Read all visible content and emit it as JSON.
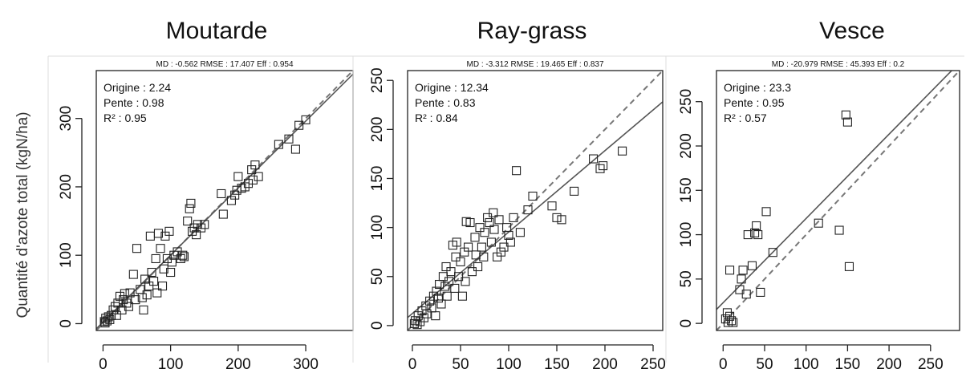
{
  "figure": {
    "ylabel": "Quantité d'azote total (kgN/ha)"
  },
  "chart_data": [
    {
      "type": "scatter",
      "title": "Moutarde",
      "stats_label": "MD : -0.562   RMSE : 17.407   Eff : 0.954",
      "annotations": [
        "Origine : 2.24",
        "Pente : 0.98",
        "R² : 0.95"
      ],
      "xlim": [
        -10,
        370
      ],
      "ylim": [
        -10,
        370
      ],
      "xticks": [
        0,
        100,
        200,
        300
      ],
      "yticks": [
        0,
        100,
        200,
        300
      ],
      "fit": {
        "intercept": 2.24,
        "slope": 0.98
      },
      "reference_line": {
        "intercept": 0,
        "slope": 1
      },
      "grid": false,
      "points": [
        [
          2,
          3
        ],
        [
          4,
          8
        ],
        [
          6,
          4
        ],
        [
          8,
          10
        ],
        [
          10,
          6
        ],
        [
          12,
          12
        ],
        [
          3,
          1
        ],
        [
          15,
          20
        ],
        [
          18,
          25
        ],
        [
          20,
          12
        ],
        [
          22,
          30
        ],
        [
          25,
          40
        ],
        [
          28,
          20
        ],
        [
          30,
          35
        ],
        [
          32,
          44
        ],
        [
          35,
          30
        ],
        [
          38,
          25
        ],
        [
          40,
          45
        ],
        [
          45,
          72
        ],
        [
          48,
          35
        ],
        [
          50,
          110
        ],
        [
          55,
          50
        ],
        [
          58,
          38
        ],
        [
          60,
          20
        ],
        [
          62,
          65
        ],
        [
          65,
          42
        ],
        [
          68,
          55
        ],
        [
          70,
          128
        ],
        [
          72,
          75
        ],
        [
          75,
          62
        ],
        [
          78,
          95
        ],
        [
          80,
          45
        ],
        [
          82,
          132
        ],
        [
          85,
          110
        ],
        [
          88,
          55
        ],
        [
          90,
          80
        ],
        [
          92,
          128
        ],
        [
          95,
          95
        ],
        [
          98,
          135
        ],
        [
          100,
          75
        ],
        [
          102,
          90
        ],
        [
          105,
          100
        ],
        [
          110,
          105
        ],
        [
          115,
          95
        ],
        [
          118,
          100
        ],
        [
          120,
          98
        ],
        [
          125,
          150
        ],
        [
          128,
          168
        ],
        [
          130,
          176
        ],
        [
          132,
          135
        ],
        [
          135,
          140
        ],
        [
          138,
          130
        ],
        [
          140,
          145
        ],
        [
          145,
          140
        ],
        [
          150,
          145
        ],
        [
          175,
          190
        ],
        [
          178,
          160
        ],
        [
          190,
          180
        ],
        [
          195,
          188
        ],
        [
          198,
          195
        ],
        [
          200,
          215
        ],
        [
          205,
          198
        ],
        [
          210,
          200
        ],
        [
          215,
          205
        ],
        [
          220,
          225
        ],
        [
          222,
          210
        ],
        [
          225,
          232
        ],
        [
          230,
          215
        ],
        [
          260,
          262
        ],
        [
          275,
          270
        ],
        [
          285,
          255
        ],
        [
          290,
          290
        ],
        [
          300,
          298
        ]
      ]
    },
    {
      "type": "scatter",
      "title": "Ray-grass",
      "stats_label": "MD : -3.312   RMSE : 19.465   Eff : 0.837",
      "annotations": [
        "Origine : 12.34",
        "Pente : 0.83",
        "R² : 0.84"
      ],
      "xlim": [
        -5,
        260
      ],
      "ylim": [
        -5,
        260
      ],
      "xticks": [
        0,
        50,
        100,
        150,
        200,
        250
      ],
      "yticks": [
        0,
        50,
        100,
        150,
        200,
        250
      ],
      "fit": {
        "intercept": 12.34,
        "slope": 0.83
      },
      "reference_line": {
        "intercept": 0,
        "slope": 1
      },
      "grid": false,
      "points": [
        [
          2,
          2
        ],
        [
          3,
          5
        ],
        [
          5,
          1
        ],
        [
          6,
          10
        ],
        [
          8,
          4
        ],
        [
          10,
          15
        ],
        [
          12,
          8
        ],
        [
          14,
          20
        ],
        [
          15,
          12
        ],
        [
          18,
          25
        ],
        [
          20,
          18
        ],
        [
          22,
          30
        ],
        [
          24,
          10
        ],
        [
          25,
          35
        ],
        [
          27,
          28
        ],
        [
          28,
          42
        ],
        [
          30,
          22
        ],
        [
          32,
          50
        ],
        [
          34,
          40
        ],
        [
          35,
          60
        ],
        [
          36,
          30
        ],
        [
          38,
          45
        ],
        [
          40,
          55
        ],
        [
          42,
          82
        ],
        [
          44,
          38
        ],
        [
          45,
          70
        ],
        [
          46,
          85
        ],
        [
          48,
          50
        ],
        [
          50,
          65
        ],
        [
          52,
          30
        ],
        [
          54,
          75
        ],
        [
          55,
          45
        ],
        [
          56,
          106
        ],
        [
          58,
          80
        ],
        [
          60,
          105
        ],
        [
          62,
          55
        ],
        [
          65,
          90
        ],
        [
          66,
          72
        ],
        [
          68,
          60
        ],
        [
          70,
          100
        ],
        [
          72,
          80
        ],
        [
          74,
          70
        ],
        [
          75,
          95
        ],
        [
          78,
          110
        ],
        [
          80,
          105
        ],
        [
          82,
          85
        ],
        [
          84,
          115
        ],
        [
          85,
          98
        ],
        [
          88,
          70
        ],
        [
          90,
          108
        ],
        [
          92,
          75
        ],
        [
          95,
          80
        ],
        [
          98,
          100
        ],
        [
          100,
          92
        ],
        [
          102,
          85
        ],
        [
          105,
          110
        ],
        [
          108,
          158
        ],
        [
          112,
          95
        ],
        [
          120,
          118
        ],
        [
          125,
          132
        ],
        [
          145,
          122
        ],
        [
          150,
          110
        ],
        [
          155,
          108
        ],
        [
          168,
          137
        ],
        [
          188,
          170
        ],
        [
          195,
          160
        ],
        [
          198,
          163
        ],
        [
          218,
          178
        ]
      ]
    },
    {
      "type": "scatter",
      "title": "Vesce",
      "stats_label": "MD : -20.979   RMSE : 45.393   Eff : 0.2",
      "annotations": [
        "Origine : 23.3",
        "Pente : 0.95",
        "R² : 0.57"
      ],
      "xlim": [
        -8,
        285
      ],
      "ylim": [
        -8,
        285
      ],
      "xticks": [
        0,
        50,
        100,
        150,
        200,
        250
      ],
      "yticks": [
        0,
        50,
        100,
        150,
        200,
        250
      ],
      "fit": {
        "intercept": 23.3,
        "slope": 0.95
      },
      "reference_line": {
        "intercept": 0,
        "slope": 1
      },
      "grid": false,
      "points": [
        [
          3,
          5
        ],
        [
          5,
          12
        ],
        [
          6,
          1
        ],
        [
          8,
          8
        ],
        [
          10,
          3
        ],
        [
          12,
          1
        ],
        [
          8,
          60
        ],
        [
          20,
          38
        ],
        [
          22,
          50
        ],
        [
          24,
          60
        ],
        [
          28,
          33
        ],
        [
          30,
          100
        ],
        [
          35,
          65
        ],
        [
          38,
          102
        ],
        [
          40,
          110
        ],
        [
          42,
          100
        ],
        [
          45,
          35
        ],
        [
          52,
          126
        ],
        [
          60,
          80
        ],
        [
          115,
          113
        ],
        [
          140,
          105
        ],
        [
          148,
          235
        ],
        [
          150,
          227
        ],
        [
          152,
          64
        ]
      ]
    }
  ]
}
